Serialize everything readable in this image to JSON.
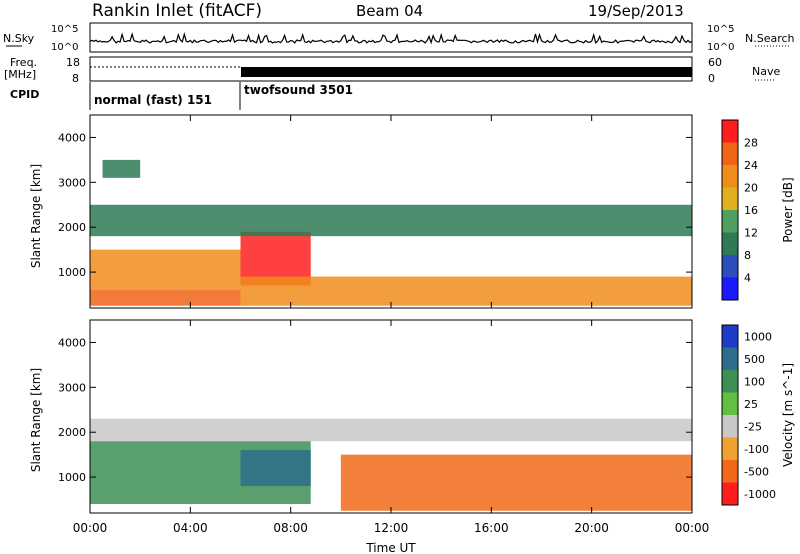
{
  "header": {
    "station": "Rankin Inlet (fitACF)",
    "beam": "Beam 04",
    "date": "19/Sep/2013"
  },
  "noise_panel": {
    "left_label": "N.Sky",
    "left_ticks": [
      "10^5",
      "10^0"
    ],
    "right_ticks": [
      "10^5",
      "10^0"
    ],
    "right_label": "N.Search"
  },
  "freq_panel": {
    "left_label_1": "Freq.",
    "left_label_2": "[MHz]",
    "left_ticks": [
      "18",
      "8"
    ],
    "right_ticks": [
      "60",
      "0"
    ],
    "right_label": "Nave",
    "cpid_label": "CPID",
    "cpid_modes": [
      {
        "name": "normal (fast) 151",
        "start_hour": 0,
        "end_hour": 6
      },
      {
        "name": "twofsound 3501",
        "start_hour": 6,
        "end_hour": 24
      }
    ]
  },
  "chart_data": [
    {
      "type": "heatmap",
      "title": "Power",
      "xlabel": "Time UT",
      "ylabel": "Slant Range [km]",
      "colorbar_label": "Power [dB]",
      "xlim": [
        0,
        24
      ],
      "ylim": [
        200,
        4500
      ],
      "y_ticks": [
        1000,
        2000,
        3000,
        4000
      ],
      "colorbar_ticks": [
        4,
        8,
        12,
        16,
        20,
        24,
        28
      ],
      "colorbar_range": [
        0,
        32
      ],
      "colorbar_colors": [
        "#1a1aff",
        "#2a4fb8",
        "#2f7a55",
        "#4fa060",
        "#e0b020",
        "#f08c1c",
        "#f06418",
        "#ff1e1e"
      ],
      "regions": [
        {
          "t0": 0.0,
          "t1": 6.0,
          "r0": 250,
          "r1": 600,
          "value": 26
        },
        {
          "t0": 0.0,
          "t1": 6.0,
          "r0": 600,
          "r1": 1500,
          "value": 20
        },
        {
          "t0": 6.0,
          "t1": 8.8,
          "r0": 700,
          "r1": 1900,
          "value": 28
        },
        {
          "t0": 6.0,
          "t1": 24.0,
          "r0": 250,
          "r1": 900,
          "value": 22
        },
        {
          "t0": 0.0,
          "t1": 24.0,
          "r0": 1800,
          "r1": 2500,
          "value": 10
        },
        {
          "t0": 0.5,
          "t1": 2.0,
          "r0": 3100,
          "r1": 3500,
          "value": 8
        }
      ]
    },
    {
      "type": "heatmap",
      "title": "Velocity",
      "xlabel": "Time UT",
      "ylabel": "Slant Range [km]",
      "colorbar_label": "Velocity [m s^-1]",
      "xlim": [
        0,
        24
      ],
      "ylim": [
        200,
        4500
      ],
      "y_ticks": [
        1000,
        2000,
        3000,
        4000
      ],
      "colorbar_ticks": [
        "1000",
        "500",
        "100",
        "25",
        "-25",
        "-100",
        "-500",
        "-1000"
      ],
      "colorbar_colors": [
        "#1f3cc8",
        "#2c6e8c",
        "#3d8f55",
        "#62c040",
        "#c8c8c8",
        "#f0a030",
        "#f06818",
        "#ff1e1e"
      ],
      "regions": [
        {
          "t0": 0.0,
          "t1": 8.8,
          "r0": 400,
          "r1": 1800,
          "value": 300
        },
        {
          "t0": 6.0,
          "t1": 8.8,
          "r0": 800,
          "r1": 1600,
          "value": 700
        },
        {
          "t0": 10.0,
          "t1": 24.0,
          "r0": 250,
          "r1": 1500,
          "value": -300
        },
        {
          "t0": 0.0,
          "t1": 24.0,
          "r0": 1800,
          "r1": 2300,
          "value": 0
        }
      ]
    }
  ],
  "x_ticks": [
    "00:00",
    "04:00",
    "08:00",
    "12:00",
    "16:00",
    "20:00",
    "00:00"
  ]
}
